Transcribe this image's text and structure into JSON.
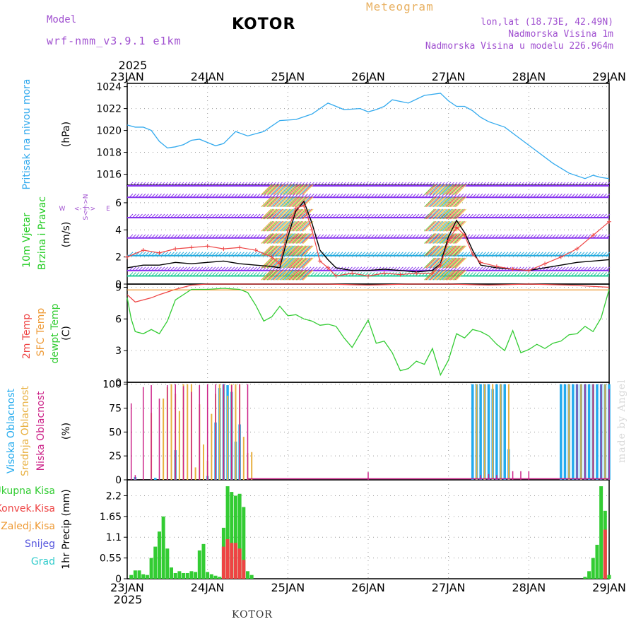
{
  "header": {
    "model_label": "Model",
    "model_name": "wrf-nmm_v3.9.1 e1km",
    "title": "KOTOR",
    "subtitle": "Meteogram",
    "location_lines": [
      "lon,lat (18.73E, 42.49N)",
      "Nadmorska Visina 1m",
      "Nadmorska Visina u modelu 226.964m"
    ],
    "footer": "KOTOR",
    "credit": "made by Angel"
  },
  "colors": {
    "pressure": "#33aaee",
    "wind_label": "#22cc22",
    "wind_speed": "#000000",
    "gust": "#ee4444",
    "temp2m": "#ee4444",
    "sfc_temp": "#ee9933",
    "dewpt": "#33cc33",
    "cloud_high": "#22aaee",
    "cloud_mid": "#e8b040",
    "cloud_low": "#cc2288",
    "precip_total": "#33cc33",
    "precip_conv": "#ee4444",
    "precip_frz": "#ee9933",
    "snow": "#5555dd",
    "hail": "#33cccc",
    "purple_text": "#a050d0"
  },
  "chart_data": [
    {
      "type": "line",
      "panel": "pressure",
      "title": "",
      "series_label": "Pritisak na nivou mora",
      "ylabel": "(hPa)",
      "ylim": [
        1015,
        1024.3
      ],
      "yticks": [
        1016,
        1018,
        1020,
        1022,
        1024
      ],
      "x_top_labels": [
        "23JAN",
        "24JAN",
        "25JAN",
        "26JAN",
        "27JAN",
        "28JAN",
        "29JAN"
      ],
      "x_top_year": "2025",
      "series": [
        {
          "x": [
            0,
            0.1,
            0.2,
            0.3,
            0.4,
            0.5,
            0.6,
            0.7,
            0.8,
            0.9,
            1.0,
            1.1,
            1.2,
            1.35,
            1.5,
            1.7,
            1.9,
            2.1,
            2.3,
            2.5,
            2.7,
            2.9,
            3.0,
            3.1,
            3.2,
            3.3,
            3.5,
            3.7,
            3.9,
            4.0,
            4.1,
            4.2,
            4.3,
            4.4,
            4.5,
            4.7,
            4.9,
            5.1,
            5.3,
            5.5,
            5.7,
            5.8,
            5.9,
            6.0
          ],
          "y": [
            1020.5,
            1020.3,
            1020.3,
            1020.0,
            1019.0,
            1018.4,
            1018.5,
            1018.7,
            1019.1,
            1019.2,
            1018.9,
            1018.6,
            1018.8,
            1019.9,
            1019.5,
            1019.9,
            1020.9,
            1021.0,
            1021.5,
            1022.5,
            1021.9,
            1022.0,
            1021.7,
            1021.9,
            1022.2,
            1022.8,
            1022.5,
            1023.2,
            1023.4,
            1022.7,
            1022.2,
            1022.2,
            1021.8,
            1021.2,
            1020.8,
            1020.3,
            1019.2,
            1018.1,
            1017.0,
            1016.1,
            1015.6,
            1015.9,
            1015.7,
            1015.6
          ]
        }
      ]
    },
    {
      "type": "line",
      "panel": "wind",
      "series_labels": [
        "10m Vjetar",
        "Brzina i Pravac"
      ],
      "ylabel": "(m/s)",
      "ylim": [
        0,
        7.3
      ],
      "yticks": [
        0,
        2,
        4,
        6
      ],
      "direction_legend": [
        "W",
        "<-",
        "|",
        "->",
        "E",
        "S",
        "N"
      ],
      "series": [
        {
          "name": "speed",
          "x": [
            0,
            0.2,
            0.4,
            0.6,
            0.8,
            1.0,
            1.2,
            1.4,
            1.6,
            1.8,
            1.9,
            2.0,
            2.1,
            2.2,
            2.3,
            2.4,
            2.5,
            2.6,
            2.8,
            3.0,
            3.2,
            3.4,
            3.6,
            3.8,
            3.9,
            4.0,
            4.1,
            4.2,
            4.3,
            4.4,
            4.6,
            4.8,
            5.0,
            5.2,
            5.4,
            5.6,
            5.8,
            6.0
          ],
          "y": [
            1.2,
            1.4,
            1.4,
            1.6,
            1.5,
            1.6,
            1.7,
            1.5,
            1.4,
            1.3,
            1.2,
            3.5,
            5.4,
            6.1,
            4.5,
            2.5,
            1.8,
            1.2,
            1.0,
            1.0,
            1.1,
            1.0,
            0.9,
            1.0,
            1.5,
            3.5,
            4.7,
            3.8,
            2.5,
            1.4,
            1.2,
            1.1,
            1.0,
            1.2,
            1.4,
            1.6,
            1.7,
            1.8
          ]
        },
        {
          "name": "gust",
          "x": [
            0,
            0.2,
            0.4,
            0.6,
            0.8,
            1.0,
            1.2,
            1.4,
            1.6,
            1.8,
            1.9,
            2.0,
            2.1,
            2.2,
            2.3,
            2.4,
            2.5,
            2.6,
            2.8,
            3.0,
            3.2,
            3.4,
            3.6,
            3.8,
            3.9,
            4.0,
            4.1,
            4.2,
            4.3,
            4.4,
            4.6,
            4.8,
            5.0,
            5.2,
            5.4,
            5.6,
            5.8,
            6.0
          ],
          "y": [
            2.0,
            2.5,
            2.3,
            2.6,
            2.7,
            2.8,
            2.6,
            2.7,
            2.5,
            2.0,
            1.5,
            4.0,
            5.6,
            5.8,
            4.0,
            1.7,
            1.2,
            0.6,
            0.8,
            0.6,
            0.8,
            0.7,
            0.8,
            0.8,
            1.4,
            3.2,
            4.2,
            3.6,
            2.2,
            1.6,
            1.3,
            1.1,
            1.0,
            1.5,
            2.0,
            2.6,
            3.6,
            4.6
          ]
        }
      ]
    },
    {
      "type": "line",
      "panel": "temperature",
      "series_labels": [
        "2m Temp",
        "SFC Temp",
        "dewpt Temp"
      ],
      "ylabel": "(C)",
      "ylim": [
        0,
        9.3
      ],
      "yticks": [
        0,
        3,
        6,
        9
      ],
      "series": [
        {
          "name": "2m Temp",
          "x": [
            0,
            0.1,
            0.2,
            0.3,
            0.4,
            0.6,
            0.8,
            1.0,
            1.5,
            2.0,
            2.5,
            3.0,
            3.5,
            4.0,
            4.5,
            5.0,
            5.5,
            6.0
          ],
          "y": [
            8.3,
            7.6,
            7.8,
            8.0,
            8.3,
            8.8,
            9.2,
            9.4,
            9.3,
            9.4,
            9.3,
            9.2,
            9.3,
            9.4,
            9.2,
            9.3,
            9.2,
            9.0
          ]
        },
        {
          "name": "SFC Temp",
          "x": [
            0,
            6.0
          ],
          "y": [
            8.75,
            8.75
          ]
        },
        {
          "name": "dewpt Temp",
          "x": [
            0,
            0.05,
            0.1,
            0.2,
            0.3,
            0.4,
            0.5,
            0.6,
            0.8,
            1.0,
            1.2,
            1.4,
            1.5,
            1.6,
            1.7,
            1.8,
            1.9,
            2.0,
            2.1,
            2.2,
            2.3,
            2.4,
            2.5,
            2.6,
            2.7,
            2.8,
            2.9,
            3.0,
            3.1,
            3.2,
            3.3,
            3.4,
            3.5,
            3.6,
            3.7,
            3.8,
            3.9,
            4.0,
            4.1,
            4.2,
            4.3,
            4.4,
            4.5,
            4.6,
            4.7,
            4.8,
            4.9,
            5.0,
            5.1,
            5.2,
            5.3,
            5.4,
            5.5,
            5.6,
            5.7,
            5.8,
            5.9,
            6.0
          ],
          "y": [
            8.0,
            6.0,
            4.8,
            4.6,
            5.0,
            4.6,
            5.8,
            7.8,
            8.8,
            8.8,
            8.9,
            8.8,
            8.5,
            7.3,
            5.8,
            6.2,
            7.2,
            6.3,
            6.4,
            6.0,
            5.8,
            5.4,
            5.5,
            5.3,
            4.2,
            3.3,
            4.6,
            5.9,
            3.7,
            3.9,
            2.8,
            1.1,
            1.3,
            2.0,
            1.7,
            3.2,
            0.7,
            2.1,
            4.6,
            4.2,
            5.0,
            4.8,
            4.4,
            3.6,
            3.0,
            4.9,
            2.8,
            3.1,
            3.6,
            3.2,
            3.7,
            3.9,
            4.5,
            4.6,
            5.3,
            4.8,
            6.1,
            8.8
          ]
        }
      ]
    },
    {
      "type": "bar",
      "panel": "clouds",
      "series_labels": [
        "Visoka Oblacnost",
        "Srednja Oblacnost",
        "Niska Oblacnost"
      ],
      "ylabel": "(%)",
      "ylim": [
        0,
        102
      ],
      "yticks": [
        0,
        25,
        50,
        75,
        100
      ],
      "series": [
        {
          "name": "Visoka Oblacnost",
          "x": [
            0.1,
            0.35,
            0.6,
            1.0,
            1.1,
            1.15,
            1.2,
            1.25,
            1.3,
            1.35,
            1.4,
            4.3,
            4.35,
            4.4,
            4.45,
            4.5,
            4.55,
            4.6,
            4.65,
            4.7,
            4.75,
            5.4,
            5.45,
            5.5,
            5.55,
            5.6,
            5.65,
            5.7,
            5.75,
            5.8,
            5.85,
            5.9,
            5.95,
            6.0
          ],
          "y": [
            3,
            2,
            31,
            4,
            60,
            96,
            100,
            99,
            92,
            40,
            58,
            100,
            100,
            100,
            100,
            100,
            95,
            100,
            100,
            100,
            32,
            100,
            100,
            100,
            100,
            100,
            100,
            100,
            100,
            100,
            100,
            100,
            100,
            100
          ]
        },
        {
          "name": "Srednja Oblacnost",
          "x": [
            0.3,
            0.45,
            0.5,
            0.55,
            0.6,
            0.65,
            0.7,
            0.75,
            0.8,
            0.85,
            0.9,
            0.95,
            1.0,
            1.05,
            1.1,
            1.15,
            1.2,
            1.25,
            1.3,
            1.35,
            1.4,
            1.45,
            1.5,
            1.55,
            4.35,
            4.45,
            4.55,
            4.65,
            4.75,
            5.5,
            5.65,
            5.8,
            5.95
          ],
          "y": [
            70,
            85,
            97,
            100,
            90,
            72,
            100,
            100,
            100,
            13,
            79,
            37,
            20,
            69,
            90,
            100,
            99,
            88,
            100,
            100,
            100,
            45,
            28,
            29,
            100,
            100,
            100,
            100,
            100,
            100,
            100,
            100,
            100
          ]
        },
        {
          "name": "Niska Oblacnost",
          "x": [
            0.05,
            0.1,
            0.2,
            0.3,
            0.4,
            0.5,
            0.6,
            0.7,
            0.8,
            0.9,
            1.0,
            1.1,
            1.2,
            1.3,
            1.4,
            1.5,
            3.0,
            4.4,
            4.5,
            4.6,
            4.8,
            4.9,
            5.0,
            5.6,
            5.7,
            5.8,
            5.9,
            6.0
          ],
          "y": [
            80,
            5,
            97,
            99,
            85,
            99,
            100,
            98,
            92,
            99,
            100,
            100,
            100,
            99,
            100,
            100,
            8,
            5,
            6,
            5,
            9,
            9,
            9,
            100,
            100,
            100,
            100,
            95
          ]
        }
      ]
    },
    {
      "type": "bar",
      "panel": "precip",
      "series_labels": [
        "Ukupna Kisa",
        "Konvek.Kisa",
        "Zaledj.Kisa",
        "Snijeg",
        "Grad"
      ],
      "ylabel": "1hr Precip (mm)",
      "ylim": [
        0,
        2.62
      ],
      "yticks": [
        0,
        0.55,
        1.1,
        1.65,
        2.2
      ],
      "ytick_labels": [
        "0",
        "0.55",
        "1.1",
        "1.65",
        "2.2"
      ],
      "x_bottom_labels": [
        "23JAN",
        "24JAN",
        "25JAN",
        "26JAN",
        "27JAN",
        "28JAN",
        "29JAN"
      ],
      "x_bottom_year": "2025",
      "series": [
        {
          "name": "Ukupna Kisa",
          "x": [
            0.05,
            0.1,
            0.15,
            0.2,
            0.25,
            0.3,
            0.35,
            0.4,
            0.45,
            0.5,
            0.55,
            0.6,
            0.65,
            0.7,
            0.75,
            0.8,
            0.85,
            0.9,
            0.95,
            1.0,
            1.05,
            1.1,
            1.15,
            1.2,
            1.25,
            1.3,
            1.35,
            1.4,
            1.45,
            1.5,
            1.55,
            5.7,
            5.75,
            5.8,
            5.85,
            5.9,
            5.95,
            6.0
          ],
          "y": [
            0.1,
            0.22,
            0.22,
            0.12,
            0.1,
            0.55,
            0.85,
            1.25,
            1.65,
            0.8,
            0.3,
            0.15,
            0.2,
            0.15,
            0.15,
            0.2,
            0.18,
            0.75,
            0.92,
            0.18,
            0.12,
            0.08,
            0.05,
            1.35,
            2.45,
            2.3,
            2.2,
            2.25,
            1.9,
            0.2,
            0.1,
            0.05,
            0.2,
            0.55,
            0.9,
            2.45,
            1.8,
            0.1
          ]
        },
        {
          "name": "Konvek.Kisa",
          "x": [
            1.2,
            1.25,
            1.3,
            1.35,
            1.4,
            1.45,
            5.95
          ],
          "y": [
            0.85,
            1.05,
            0.95,
            0.95,
            0.8,
            0.5,
            1.3
          ]
        }
      ]
    }
  ]
}
